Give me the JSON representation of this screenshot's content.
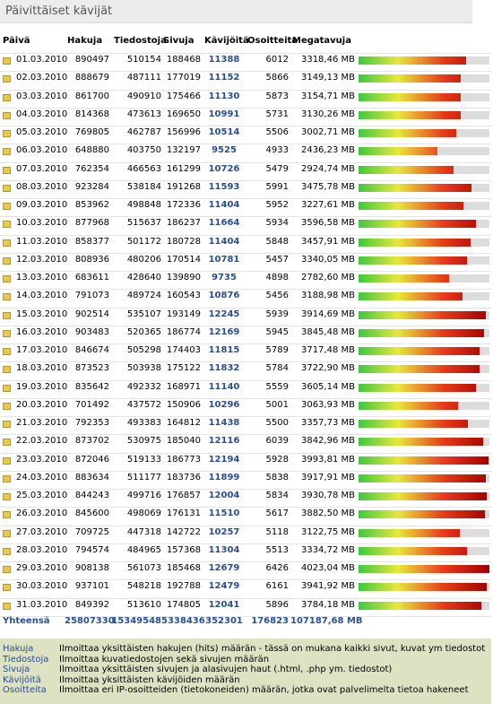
{
  "header": {
    "title": "Päivittäiset kävijät"
  },
  "table": {
    "columns": [
      "Päivä",
      "Hakuja",
      "Tiedostoja",
      "Sivuja",
      "Kävijöitä",
      "Osoitteita",
      "Megatavuja"
    ],
    "rows": [
      [
        "01.03.2010",
        890497,
        510154,
        188468,
        11388,
        6012,
        "3318,46 MB"
      ],
      [
        "02.03.2010",
        888679,
        487111,
        177019,
        11152,
        5866,
        "3149,13 MB"
      ],
      [
        "03.03.2010",
        861700,
        490910,
        175466,
        11130,
        5873,
        "3154,71 MB"
      ],
      [
        "04.03.2010",
        814368,
        473613,
        169650,
        10991,
        5731,
        "3130,26 MB"
      ],
      [
        "05.03.2010",
        769805,
        462787,
        156996,
        10514,
        5506,
        "3002,71 MB"
      ],
      [
        "06.03.2010",
        648880,
        403750,
        132197,
        9525,
        4933,
        "2436,23 MB"
      ],
      [
        "07.03.2010",
        762354,
        466563,
        161299,
        10726,
        5479,
        "2924,74 MB"
      ],
      [
        "08.03.2010",
        923284,
        538184,
        191268,
        11593,
        5991,
        "3475,78 MB"
      ],
      [
        "09.03.2010",
        853962,
        498848,
        172336,
        11404,
        5952,
        "3227,61 MB"
      ],
      [
        "10.03.2010",
        877968,
        515637,
        186237,
        11664,
        5934,
        "3596,58 MB"
      ],
      [
        "11.03.2010",
        858377,
        501172,
        180728,
        11404,
        5848,
        "3457,91 MB"
      ],
      [
        "12.03.2010",
        808936,
        480206,
        170514,
        10781,
        5457,
        "3340,05 MB"
      ],
      [
        "13.03.2010",
        683611,
        428640,
        139890,
        9735,
        4898,
        "2782,60 MB"
      ],
      [
        "14.03.2010",
        791073,
        489724,
        160543,
        10876,
        5456,
        "3188,98 MB"
      ],
      [
        "15.03.2010",
        902514,
        535107,
        193149,
        12245,
        5939,
        "3914,69 MB"
      ],
      [
        "16.03.2010",
        903483,
        520365,
        186774,
        12169,
        5945,
        "3845,48 MB"
      ],
      [
        "17.03.2010",
        846674,
        505298,
        174403,
        11815,
        5789,
        "3717,48 MB"
      ],
      [
        "18.03.2010",
        873523,
        503938,
        175122,
        11832,
        5784,
        "3722,90 MB"
      ],
      [
        "19.03.2010",
        835642,
        492332,
        168971,
        11140,
        5559,
        "3605,14 MB"
      ],
      [
        "20.03.2010",
        701492,
        437572,
        150906,
        10296,
        5001,
        "3063,93 MB"
      ],
      [
        "21.03.2010",
        792353,
        493383,
        164812,
        11438,
        5500,
        "3357,73 MB"
      ],
      [
        "22.03.2010",
        873702,
        530975,
        185040,
        12116,
        6039,
        "3842,96 MB"
      ],
      [
        "23.03.2010",
        872046,
        519133,
        186773,
        12194,
        5928,
        "3993,81 MB"
      ],
      [
        "24.03.2010",
        883634,
        511177,
        183736,
        11899,
        5838,
        "3917,91 MB"
      ],
      [
        "25.03.2010",
        844243,
        499716,
        176857,
        12004,
        5834,
        "3930,78 MB"
      ],
      [
        "26.03.2010",
        845600,
        498069,
        176131,
        11510,
        5617,
        "3882,50 MB"
      ],
      [
        "27.03.2010",
        709725,
        447318,
        142722,
        10257,
        5118,
        "3122,75 MB"
      ],
      [
        "28.03.2010",
        794574,
        484965,
        157368,
        11304,
        5513,
        "3334,72 MB"
      ],
      [
        "29.03.2010",
        908138,
        561073,
        185468,
        12679,
        6426,
        "4023,04 MB"
      ],
      [
        "30.03.2010",
        937101,
        548218,
        192788,
        12479,
        6161,
        "3941,92 MB"
      ],
      [
        "31.03.2010",
        849392,
        513610,
        174805,
        12041,
        5896,
        "3784,18 MB"
      ]
    ],
    "totals": [
      "Yhteensä",
      25807330,
      15349548,
      5338436,
      352301,
      176823,
      "107187,68 MB"
    ]
  },
  "legend": [
    {
      "term": "Hakuja",
      "text": "Ilmoittaa yksittäisten hakujen (hits) määrän - tässä on mukana kaikki sivut, kuvat ym tiedostot"
    },
    {
      "term": "Tiedostoja",
      "text": "Ilmoittaa kuvatiedostojen sekä sivujen määrän"
    },
    {
      "term": "Sivuja",
      "text": "Ilmoittaa yksittäisten sivujen ja alasivujen haut (.html, .php ym. tiedostot)"
    },
    {
      "term": "Kävijöitä",
      "text": "Ilmoittaa yksittäisten kävijöiden määrän"
    },
    {
      "term": "Osoitteita",
      "text": "Ilmoittaa eri IP-osoitteiden (tietokoneiden) määrän, jotka ovat palvelimelta tietoa hakeneet"
    }
  ]
}
